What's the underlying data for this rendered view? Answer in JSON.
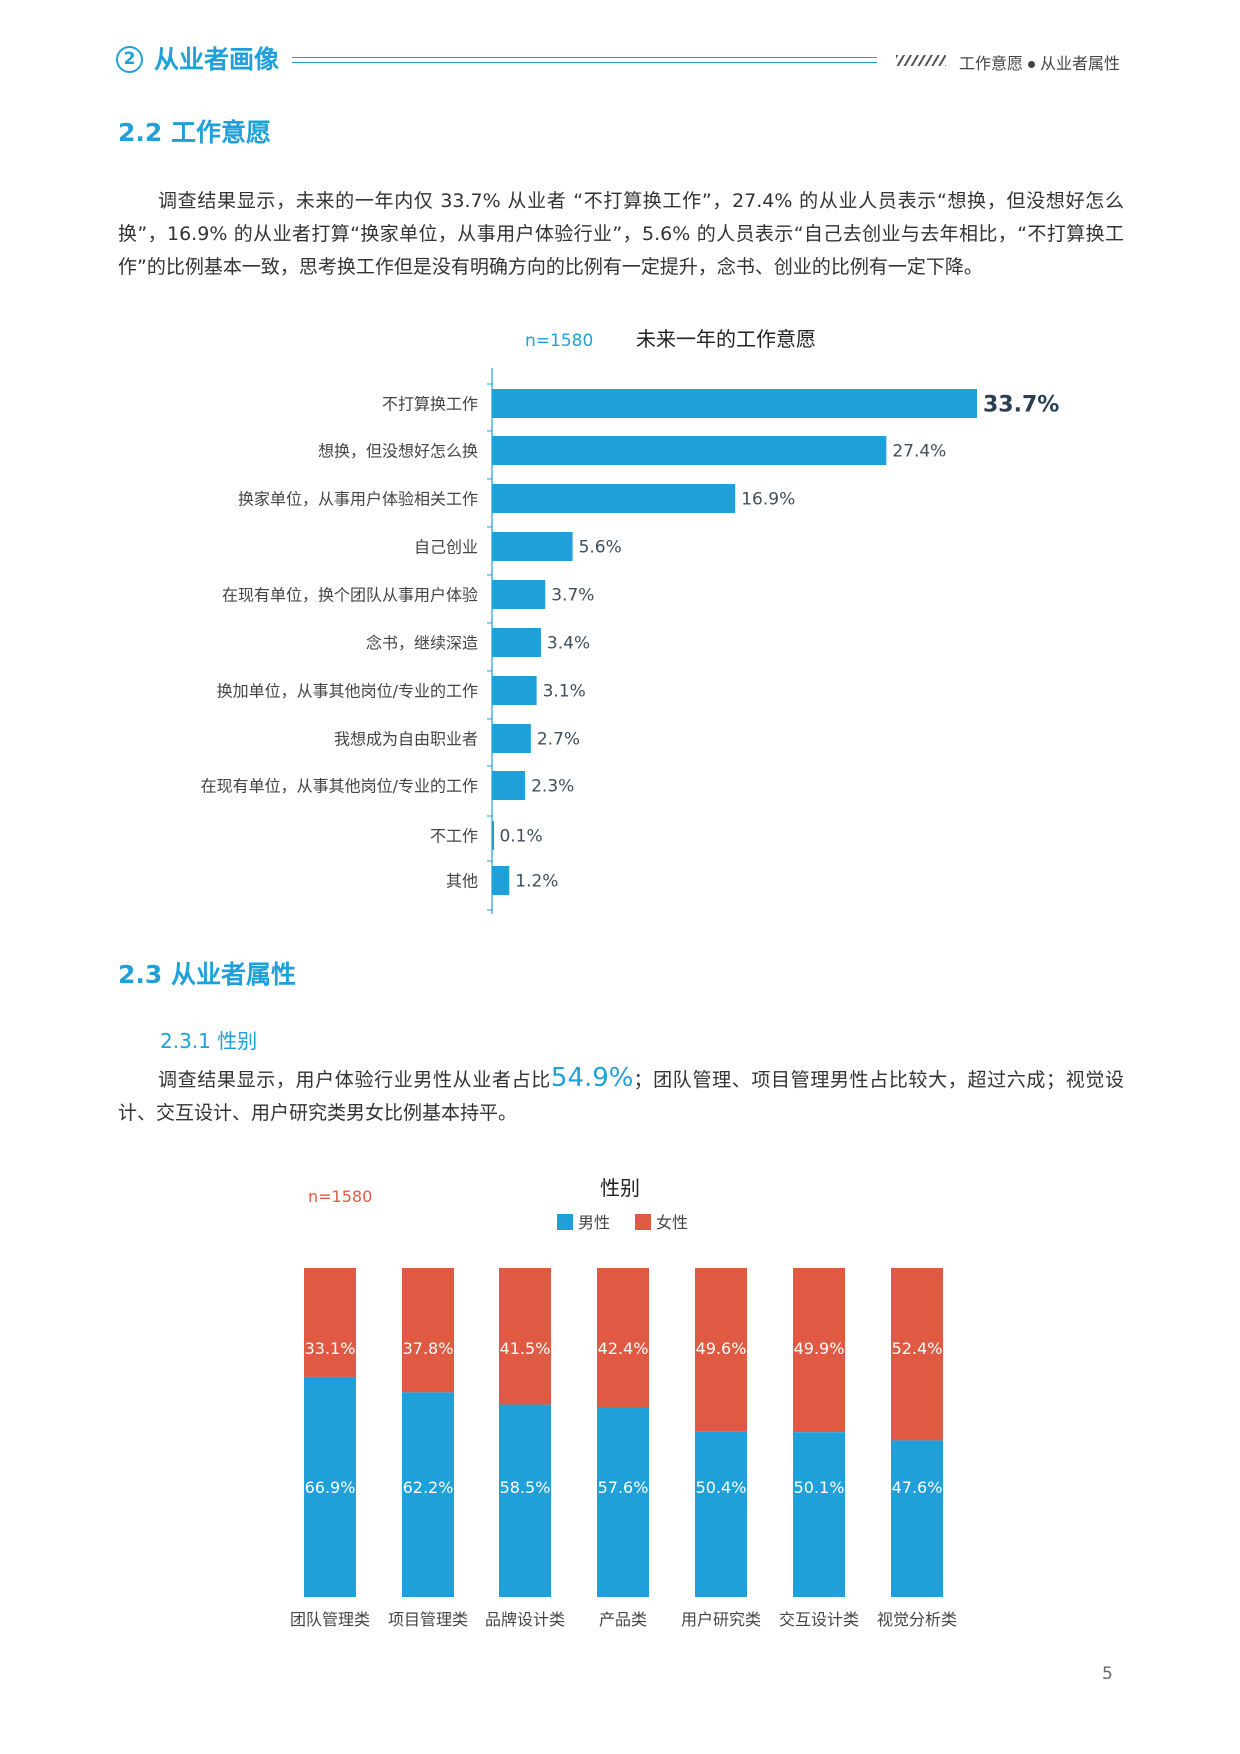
{
  "header": {
    "section_number": "2",
    "section_title": "从业者画像",
    "breadcrumb_left": "工作意愿",
    "breadcrumb_right": "从业者属性"
  },
  "section_2_2": {
    "title": "2.2 工作意愿",
    "paragraph": "调查结果显示，未来的一年内仅 33.7% 从业者 “不打算换工作”，27.4% 的从业人员表示“想换，但没想好怎么换”，16.9% 的从业者打算“换家单位，从事用户体验行业”，5.6% 的人员表示“自己去创业与去年相比，“不打算换工作”的比例基本一致，思考换工作但是没有明确方向的比例有一定提升，念书、创业的比例有一定下降。"
  },
  "section_2_3": {
    "title": "2.3 从业者属性",
    "subtitle": "2.3.1 性别",
    "paragraph_before": "调查结果显示，用户体验行业男性从业者占比",
    "paragraph_highlight": "54.9%",
    "paragraph_after": "；团队管理、项目管理男性占比较大，超过六成；视觉设计、交互设计、用户研究类男女比例基本持平。"
  },
  "page_number": "5",
  "colors": {
    "accent_blue": "#1fa0d8",
    "bar_blue": "#1fa0d8",
    "female_red": "#e05a43"
  },
  "chart_data": [
    {
      "type": "bar",
      "orientation": "horizontal",
      "title": "未来一年的工作意愿",
      "sample_note": "n=1580",
      "categories": [
        "不打算换工作",
        "想换，但没想好怎么换",
        "换家单位，从事用户体验相关工作",
        "自己创业",
        "在现有单位，换个团队从事用户体验",
        "念书，继续深造",
        "换加单位，从事其他岗位/专业的工作",
        "我想成为自由职业者",
        "在现有单位，从事其他岗位/专业的工作",
        "不工作",
        "其他"
      ],
      "values": [
        33.7,
        27.4,
        16.9,
        5.6,
        3.7,
        3.4,
        3.1,
        2.7,
        2.3,
        0.1,
        1.2
      ],
      "value_labels": [
        "33.7%",
        "27.4%",
        "16.9%",
        "5.6%",
        "3.7%",
        "3.4%",
        "3.1%",
        "2.7%",
        "2.3%",
        "0.1%",
        "1.2%"
      ],
      "xlim": [
        0,
        33.7
      ],
      "grid": false
    },
    {
      "type": "bar",
      "stacked": true,
      "title": "性别",
      "sample_note": "n=1580",
      "legend_position": "top",
      "categories": [
        "团队管理类",
        "项目管理类",
        "品牌设计类",
        "产品类",
        "用户研究类",
        "交互设计类",
        "视觉分析类"
      ],
      "series": [
        {
          "name": "男性",
          "values": [
            66.9,
            62.2,
            58.5,
            57.6,
            50.4,
            50.1,
            47.6
          ],
          "labels": [
            "66.9%",
            "62.2%",
            "58.5%",
            "57.6%",
            "50.4%",
            "50.1%",
            "47.6%"
          ]
        },
        {
          "name": "女性",
          "values": [
            33.1,
            37.8,
            41.5,
            42.4,
            49.6,
            49.9,
            52.4
          ],
          "labels": [
            "33.1%",
            "37.8%",
            "41.5%",
            "42.4%",
            "49.6%",
            "49.9%",
            "52.4%"
          ]
        }
      ],
      "ylim": [
        0,
        100
      ],
      "grid": false
    }
  ]
}
